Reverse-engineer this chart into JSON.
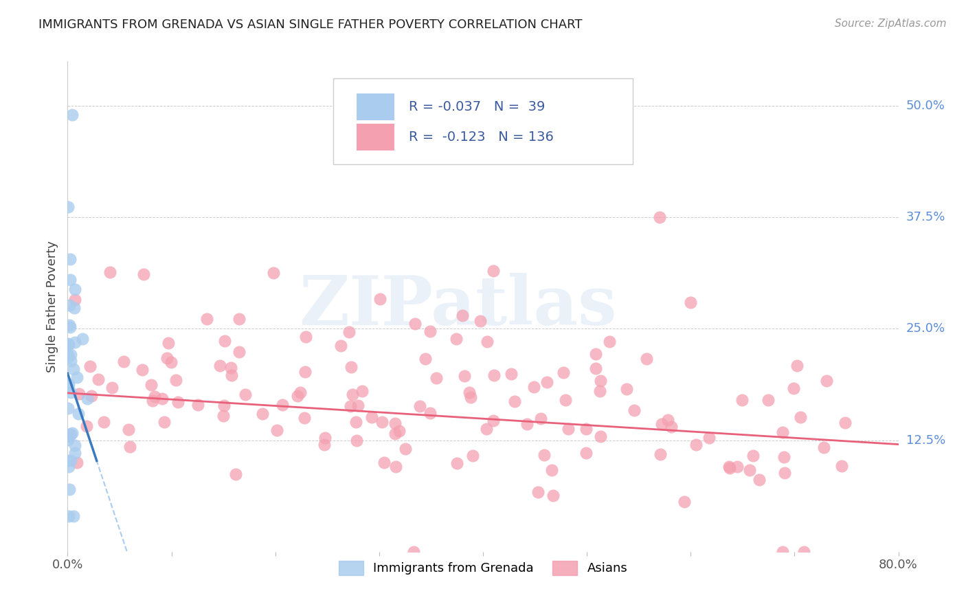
{
  "title": "IMMIGRANTS FROM GRENADA VS ASIAN SINGLE FATHER POVERTY CORRELATION CHART",
  "source": "Source: ZipAtlas.com",
  "ylabel": "Single Father Poverty",
  "xlim": [
    0.0,
    0.8
  ],
  "ylim": [
    0.0,
    0.55
  ],
  "ytick_positions": [
    0.0,
    0.125,
    0.25,
    0.375,
    0.5
  ],
  "ytick_labels": [
    "",
    "12.5%",
    "25.0%",
    "37.5%",
    "50.0%"
  ],
  "grid_yticks": [
    0.0,
    0.125,
    0.25,
    0.375,
    0.5
  ],
  "watermark": "ZIPatlas",
  "background_color": "#ffffff",
  "scatter_blue_color": "#aaccee",
  "scatter_pink_color": "#f4a0b0",
  "line_blue_color": "#3a7abf",
  "line_pink_color": "#e8607a",
  "line_blue_dash_color": "#aaccee",
  "inset_R_blue": "-0.037",
  "inset_N_blue": "39",
  "inset_R_pink": "-0.123",
  "inset_N_pink": "136",
  "legend_blue_label": "Immigrants from Grenada",
  "legend_pink_label": "Asians"
}
